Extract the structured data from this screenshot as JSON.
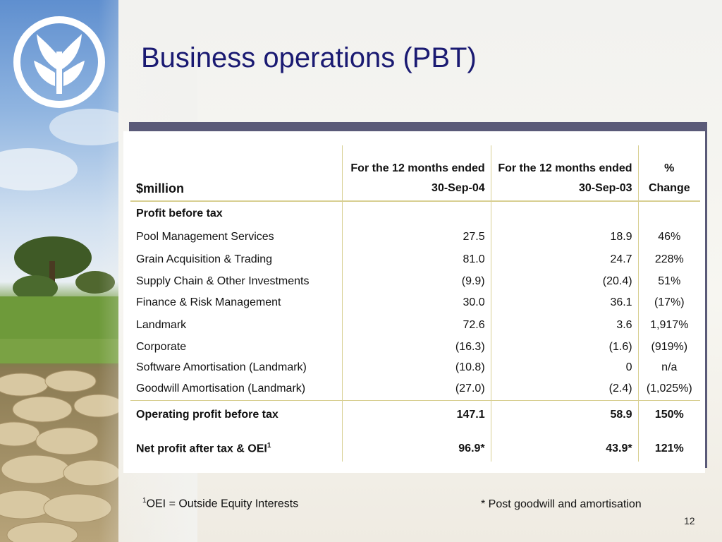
{
  "slide": {
    "title": "Business operations (PBT)",
    "page_number": "12"
  },
  "table": {
    "unit_label": "$million",
    "col2_header_line1": "For the 12 months ended",
    "col2_header_line2": "30-Sep-04",
    "col3_header_line1": "For the 12 months ended",
    "col3_header_line2": "30-Sep-03",
    "col4_header_line1": "%",
    "col4_header_line2": "Change",
    "section_label": "Profit before tax",
    "rows": [
      {
        "label": "Pool Management Services",
        "fy04": "27.5",
        "fy03": "18.9",
        "change": "46%"
      },
      {
        "label": "Grain Acquisition & Trading",
        "fy04": "81.0",
        "fy03": "24.7",
        "change": "228%"
      },
      {
        "label": "Supply Chain & Other Investments",
        "fy04": "(9.9)",
        "fy03": "(20.4)",
        "change": "51%"
      },
      {
        "label": "Finance & Risk Management",
        "fy04": "30.0",
        "fy03": "36.1",
        "change": "(17%)"
      },
      {
        "label": "Landmark",
        "fy04": "72.6",
        "fy03": "3.6",
        "change": "1,917%"
      },
      {
        "label": "Corporate",
        "fy04": "(16.3)",
        "fy03": "(1.6)",
        "change": "(919%)"
      },
      {
        "label": "Software Amortisation (Landmark)",
        "fy04": "(10.8)",
        "fy03": "0",
        "change": "n/a"
      },
      {
        "label": "Goodwill Amortisation (Landmark)",
        "fy04": "(27.0)",
        "fy03": "(2.4)",
        "change": "(1,025%)"
      }
    ],
    "total": {
      "label": "Operating profit before tax",
      "fy04": "147.1",
      "fy03": "58.9",
      "change": "150%"
    },
    "net": {
      "label": "Net profit after tax & OEI",
      "label_sup": "1",
      "fy04": "96.9*",
      "fy03": "43.9*",
      "change": "121%"
    }
  },
  "footnotes": {
    "oei_sup": "1",
    "oei_text": "OEI = Outside Equity Interests",
    "post_text": "* Post goodwill and amortisation"
  },
  "logo": {
    "icon": "wheat-logo-icon",
    "color": "#ffffff"
  },
  "colors": {
    "title": "#1a1a72",
    "rule": "#d8cf92",
    "panel_shadow": "#5a5a78"
  }
}
